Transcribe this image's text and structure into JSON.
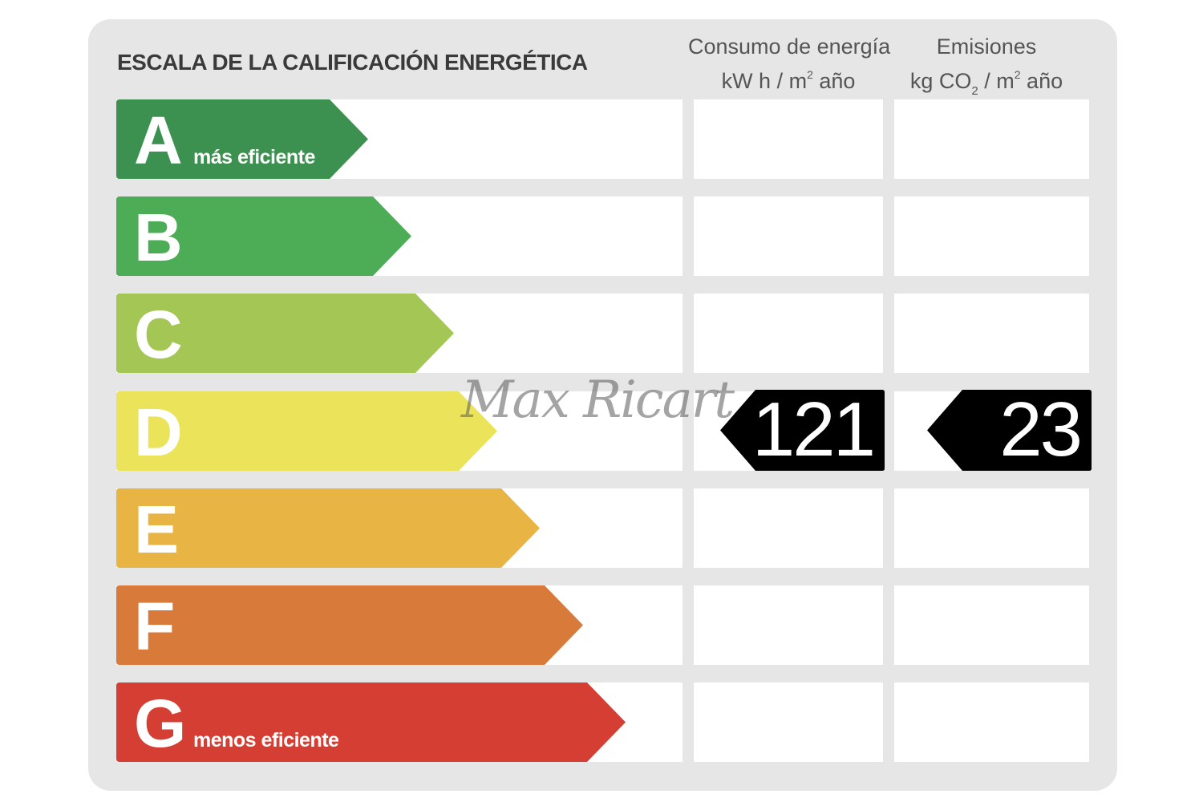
{
  "title": "ESCALA DE LA CALIFICACIÓN ENERGÉTICA",
  "columns": {
    "energy": {
      "line1": "Consumo de energía",
      "line2_prefix": "kW h  / m",
      "line2_sup": "2",
      "line2_suffix": " año"
    },
    "emissions": {
      "line1": "Emisiones",
      "line2_prefix": "kg CO",
      "line2_sub": "2",
      "line2_mid": "  / m",
      "line2_sup": "2",
      "line2_suffix": " año"
    }
  },
  "classes": [
    {
      "letter": "A",
      "sublabel": "más eficiente",
      "color": "#3d9150"
    },
    {
      "letter": "B",
      "sublabel": "",
      "color": "#4dad57"
    },
    {
      "letter": "C",
      "sublabel": "",
      "color": "#a3c655"
    },
    {
      "letter": "D",
      "sublabel": "",
      "color": "#ebe45a"
    },
    {
      "letter": "E",
      "sublabel": "",
      "color": "#e8b444"
    },
    {
      "letter": "F",
      "sublabel": "",
      "color": "#d87a3a"
    },
    {
      "letter": "G",
      "sublabel": "menos eficiente",
      "color": "#d43e33"
    }
  ],
  "rating": {
    "class": "D",
    "energy_value": "121",
    "emissions_value": "23",
    "tag_color": "#000000"
  },
  "watermark": "Max Ricart"
}
